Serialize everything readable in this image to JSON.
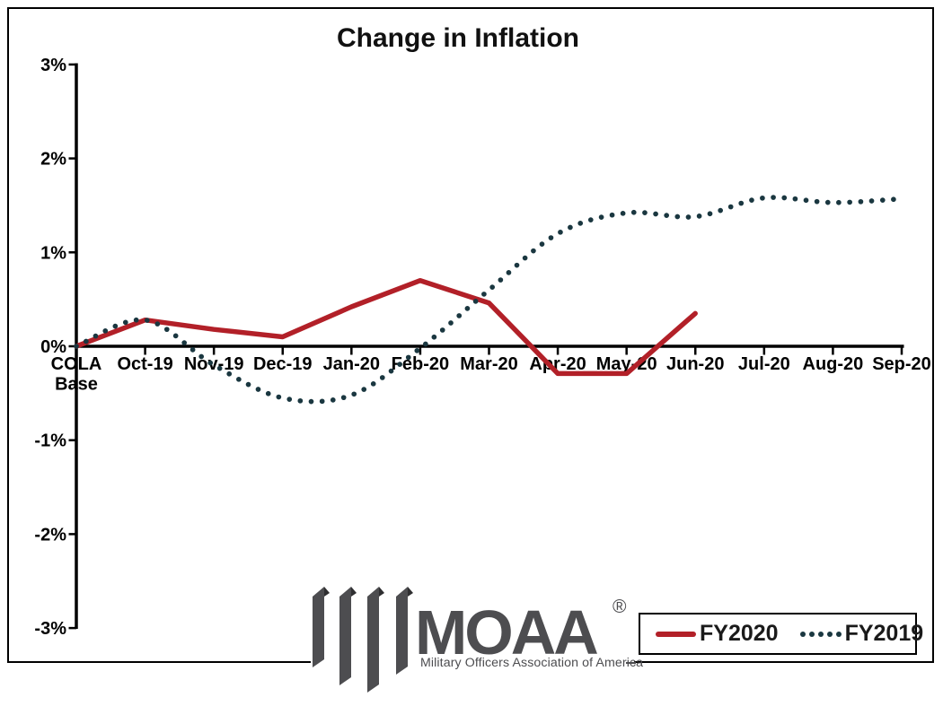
{
  "chart_data": {
    "type": "line",
    "title": "Change in Inflation",
    "categories": [
      "COLA\nBase",
      "Oct-19",
      "Nov-19",
      "Dec-19",
      "Jan-20",
      "Feb-20",
      "Mar-20",
      "Apr-20",
      "May-20",
      "Jun-20",
      "Jul-20",
      "Aug-20",
      "Sep-20"
    ],
    "series": [
      {
        "name": "FY2020",
        "color": "#b22028",
        "line_style": "solid",
        "smooth": false,
        "values": [
          0,
          0.28,
          0.18,
          0.1,
          0.42,
          0.7,
          0.46,
          -0.29,
          -0.29,
          0.35
        ]
      },
      {
        "name": "FY2019",
        "color": "#1a3740",
        "line_style": "dotted",
        "smooth": true,
        "values": [
          0,
          0.28,
          -0.2,
          -0.55,
          -0.52,
          -0.02,
          0.6,
          1.2,
          1.42,
          1.38,
          1.58,
          1.53,
          1.57
        ]
      }
    ],
    "ylim": [
      -3,
      3
    ],
    "ytick_step": 1,
    "ytick_labels": [
      "3%",
      "2%",
      "1%",
      "0%",
      "-1%",
      "-2%",
      "-3%"
    ],
    "xlabel": "",
    "ylabel": "",
    "grid": false,
    "legend_position": "bottom-right"
  },
  "legend": {
    "entries": [
      {
        "label": "FY2020",
        "swatch": "solid-red-line"
      },
      {
        "label": "FY2019",
        "swatch": "dotted-teal-line"
      }
    ]
  },
  "logo": {
    "acronym": "MOAA",
    "registered_mark": "®",
    "tagline": "Military Officers Association of America",
    "color": "#4d4d50"
  },
  "colors": {
    "axis": "#000000",
    "fy2020_line": "#b22028",
    "fy2019_line": "#1a3740",
    "logo_gray": "#4d4d50"
  }
}
